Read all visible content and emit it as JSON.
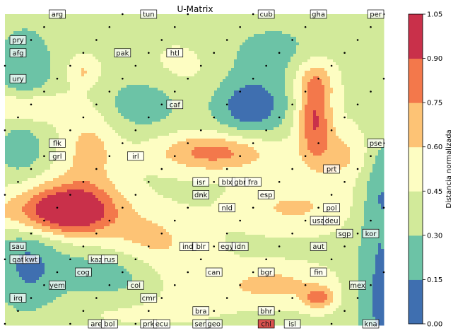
{
  "chart_data": {
    "type": "heatmap",
    "title": "U-Matrix",
    "colorbar": {
      "label": "Distancia normalizada",
      "levels": [
        0.0,
        0.15,
        0.3,
        0.45,
        0.6,
        0.75,
        0.9,
        1.05
      ],
      "tick_labels": [
        "0.00",
        "0.15",
        "0.30",
        "0.45",
        "0.60",
        "0.75",
        "0.90",
        "1.05"
      ],
      "colors": [
        "#3f6fb0",
        "#6cc3a6",
        "#d2ea9a",
        "#fdfdc2",
        "#fdc375",
        "#f3784b",
        "#c9304a"
      ]
    },
    "grid": false,
    "x_range": [
      0,
      29
    ],
    "y_range": [
      0,
      24
    ],
    "field_peaks": [
      {
        "x": 1.5,
        "y": 20,
        "v": 0.15,
        "sx": 1.6,
        "sy": 2.2
      },
      {
        "x": 1.2,
        "y": 13.5,
        "v": 0.2,
        "sx": 1.4,
        "sy": 1.4
      },
      {
        "x": 1.8,
        "y": 4.8,
        "v": 0.12,
        "sx": 2.0,
        "sy": 3.0
      },
      {
        "x": 28.7,
        "y": 2,
        "v": 0.12,
        "sx": 1.3,
        "sy": 5.0
      },
      {
        "x": 28.8,
        "y": 11,
        "v": 0.2,
        "sx": 1.0,
        "sy": 3.0
      },
      {
        "x": 10.5,
        "y": 17,
        "v": 0.2,
        "sx": 2.2,
        "sy": 1.5
      },
      {
        "x": 18.8,
        "y": 16.8,
        "v": 0.05,
        "sx": 2.0,
        "sy": 1.6
      },
      {
        "x": 21.0,
        "y": 21.0,
        "v": 0.25,
        "sx": 4.0,
        "sy": 2.0
      },
      {
        "x": 5,
        "y": 9,
        "v": 0.98,
        "sx": 2.5,
        "sy": 1.5
      },
      {
        "x": 3,
        "y": 8.5,
        "v": 0.72,
        "sx": 3.5,
        "sy": 1.2
      },
      {
        "x": 1.5,
        "y": 16.8,
        "v": 0.68,
        "sx": 2.5,
        "sy": 0.8
      },
      {
        "x": 6.5,
        "y": 13.5,
        "v": 0.66,
        "sx": 1.5,
        "sy": 2.0
      },
      {
        "x": 11,
        "y": 6.5,
        "v": 0.64,
        "sx": 2.5,
        "sy": 1.5
      },
      {
        "x": 16,
        "y": 13.3,
        "v": 0.82,
        "sx": 3.0,
        "sy": 1.0
      },
      {
        "x": 23.7,
        "y": 16,
        "v": 0.9,
        "sx": 0.9,
        "sy": 2.0
      },
      {
        "x": 23.7,
        "y": 19,
        "v": 0.7,
        "sx": 1.2,
        "sy": 1.2
      },
      {
        "x": 25.5,
        "y": 13,
        "v": 0.64,
        "sx": 2.0,
        "sy": 1.5
      },
      {
        "x": 22,
        "y": 9,
        "v": 0.62,
        "sx": 3.0,
        "sy": 1.2
      },
      {
        "x": 6,
        "y": 19.5,
        "v": 0.62,
        "sx": 0.8,
        "sy": 0.8
      },
      {
        "x": 14,
        "y": 20,
        "v": 0.52,
        "sx": 2.0,
        "sy": 1.5
      },
      {
        "x": 20.5,
        "y": 3,
        "v": 0.66,
        "sx": 2.8,
        "sy": 1.0
      },
      {
        "x": 24,
        "y": 2.0,
        "v": 0.8,
        "sx": 0.8,
        "sy": 0.6
      },
      {
        "x": 14,
        "y": 3.5,
        "v": 0.5,
        "sx": 2.5,
        "sy": 1.8
      },
      {
        "x": 9,
        "y": 1.0,
        "v": 0.48,
        "sx": 4.0,
        "sy": 0.8
      },
      {
        "x": 8,
        "y": 4,
        "v": 0.2,
        "sx": 2.5,
        "sy": 1.5
      },
      {
        "x": 26,
        "y": 22,
        "v": 0.5,
        "sx": 2.0,
        "sy": 1.5
      }
    ],
    "labels": [
      {
        "text": "arg",
        "x": 4,
        "y": 24
      },
      {
        "text": "tun",
        "x": 11,
        "y": 24
      },
      {
        "text": "cub",
        "x": 20,
        "y": 24
      },
      {
        "text": "gha",
        "x": 24,
        "y": 24
      },
      {
        "text": "per",
        "x": 29,
        "y": 24
      },
      {
        "text": "pry",
        "x": 1,
        "y": 22
      },
      {
        "text": "afg",
        "x": 1,
        "y": 21
      },
      {
        "text": "pak",
        "x": 9,
        "y": 21
      },
      {
        "text": "htl",
        "x": 13,
        "y": 21
      },
      {
        "text": "ury",
        "x": 1,
        "y": 19
      },
      {
        "text": "caf",
        "x": 13,
        "y": 17
      },
      {
        "text": "flk",
        "x": 4,
        "y": 14
      },
      {
        "text": "pse",
        "x": 29,
        "y": 14
      },
      {
        "text": "grl",
        "x": 4,
        "y": 13
      },
      {
        "text": "irl",
        "x": 10,
        "y": 13
      },
      {
        "text": "prt",
        "x": 25,
        "y": 12
      },
      {
        "text": "isr",
        "x": 15,
        "y": 11
      },
      {
        "text": "blx",
        "x": 17,
        "y": 11
      },
      {
        "text": "gbr",
        "x": 18,
        "y": 11
      },
      {
        "text": "fra",
        "x": 19,
        "y": 11
      },
      {
        "text": "dnk",
        "x": 15,
        "y": 10
      },
      {
        "text": "esp",
        "x": 20,
        "y": 10
      },
      {
        "text": "nld",
        "x": 17,
        "y": 9
      },
      {
        "text": "pol",
        "x": 25,
        "y": 9
      },
      {
        "text": "usa",
        "x": 24,
        "y": 8
      },
      {
        "text": "deu",
        "x": 25,
        "y": 8
      },
      {
        "text": "sgp",
        "x": 26,
        "y": 7
      },
      {
        "text": "kor",
        "x": 28,
        "y": 7
      },
      {
        "text": "sau",
        "x": 1,
        "y": 6
      },
      {
        "text": "ind",
        "x": 14,
        "y": 6
      },
      {
        "text": "blr",
        "x": 15,
        "y": 6
      },
      {
        "text": "egy",
        "x": 17,
        "y": 6
      },
      {
        "text": "idn",
        "x": 18,
        "y": 6
      },
      {
        "text": "aut",
        "x": 24,
        "y": 6
      },
      {
        "text": "qat",
        "x": 1,
        "y": 5
      },
      {
        "text": "kwt",
        "x": 2,
        "y": 5
      },
      {
        "text": "kaz",
        "x": 7,
        "y": 5
      },
      {
        "text": "rus",
        "x": 8,
        "y": 5
      },
      {
        "text": "cog",
        "x": 6,
        "y": 4
      },
      {
        "text": "can",
        "x": 16,
        "y": 4
      },
      {
        "text": "bgr",
        "x": 20,
        "y": 4
      },
      {
        "text": "fin",
        "x": 24,
        "y": 4
      },
      {
        "text": "yem",
        "x": 4,
        "y": 3
      },
      {
        "text": "col",
        "x": 10,
        "y": 3
      },
      {
        "text": "mex",
        "x": 27,
        "y": 3
      },
      {
        "text": "irq",
        "x": 1,
        "y": 2
      },
      {
        "text": "cmr",
        "x": 11,
        "y": 2
      },
      {
        "text": "bra",
        "x": 15,
        "y": 1
      },
      {
        "text": "bhr",
        "x": 20,
        "y": 1
      },
      {
        "text": "are",
        "x": 7,
        "y": 0
      },
      {
        "text": "bol",
        "x": 8,
        "y": 0
      },
      {
        "text": "prk",
        "x": 11,
        "y": 0
      },
      {
        "text": "ecu",
        "x": 12,
        "y": 0
      },
      {
        "text": "sen",
        "x": 15,
        "y": 0
      },
      {
        "text": "geo",
        "x": 16,
        "y": 0
      },
      {
        "text": "chl",
        "x": 20,
        "y": 0,
        "highlight": "#d9534f"
      },
      {
        "text": "isl",
        "x": 22,
        "y": 0
      },
      {
        "text": "kna",
        "x": 28,
        "y": 0
      }
    ]
  }
}
